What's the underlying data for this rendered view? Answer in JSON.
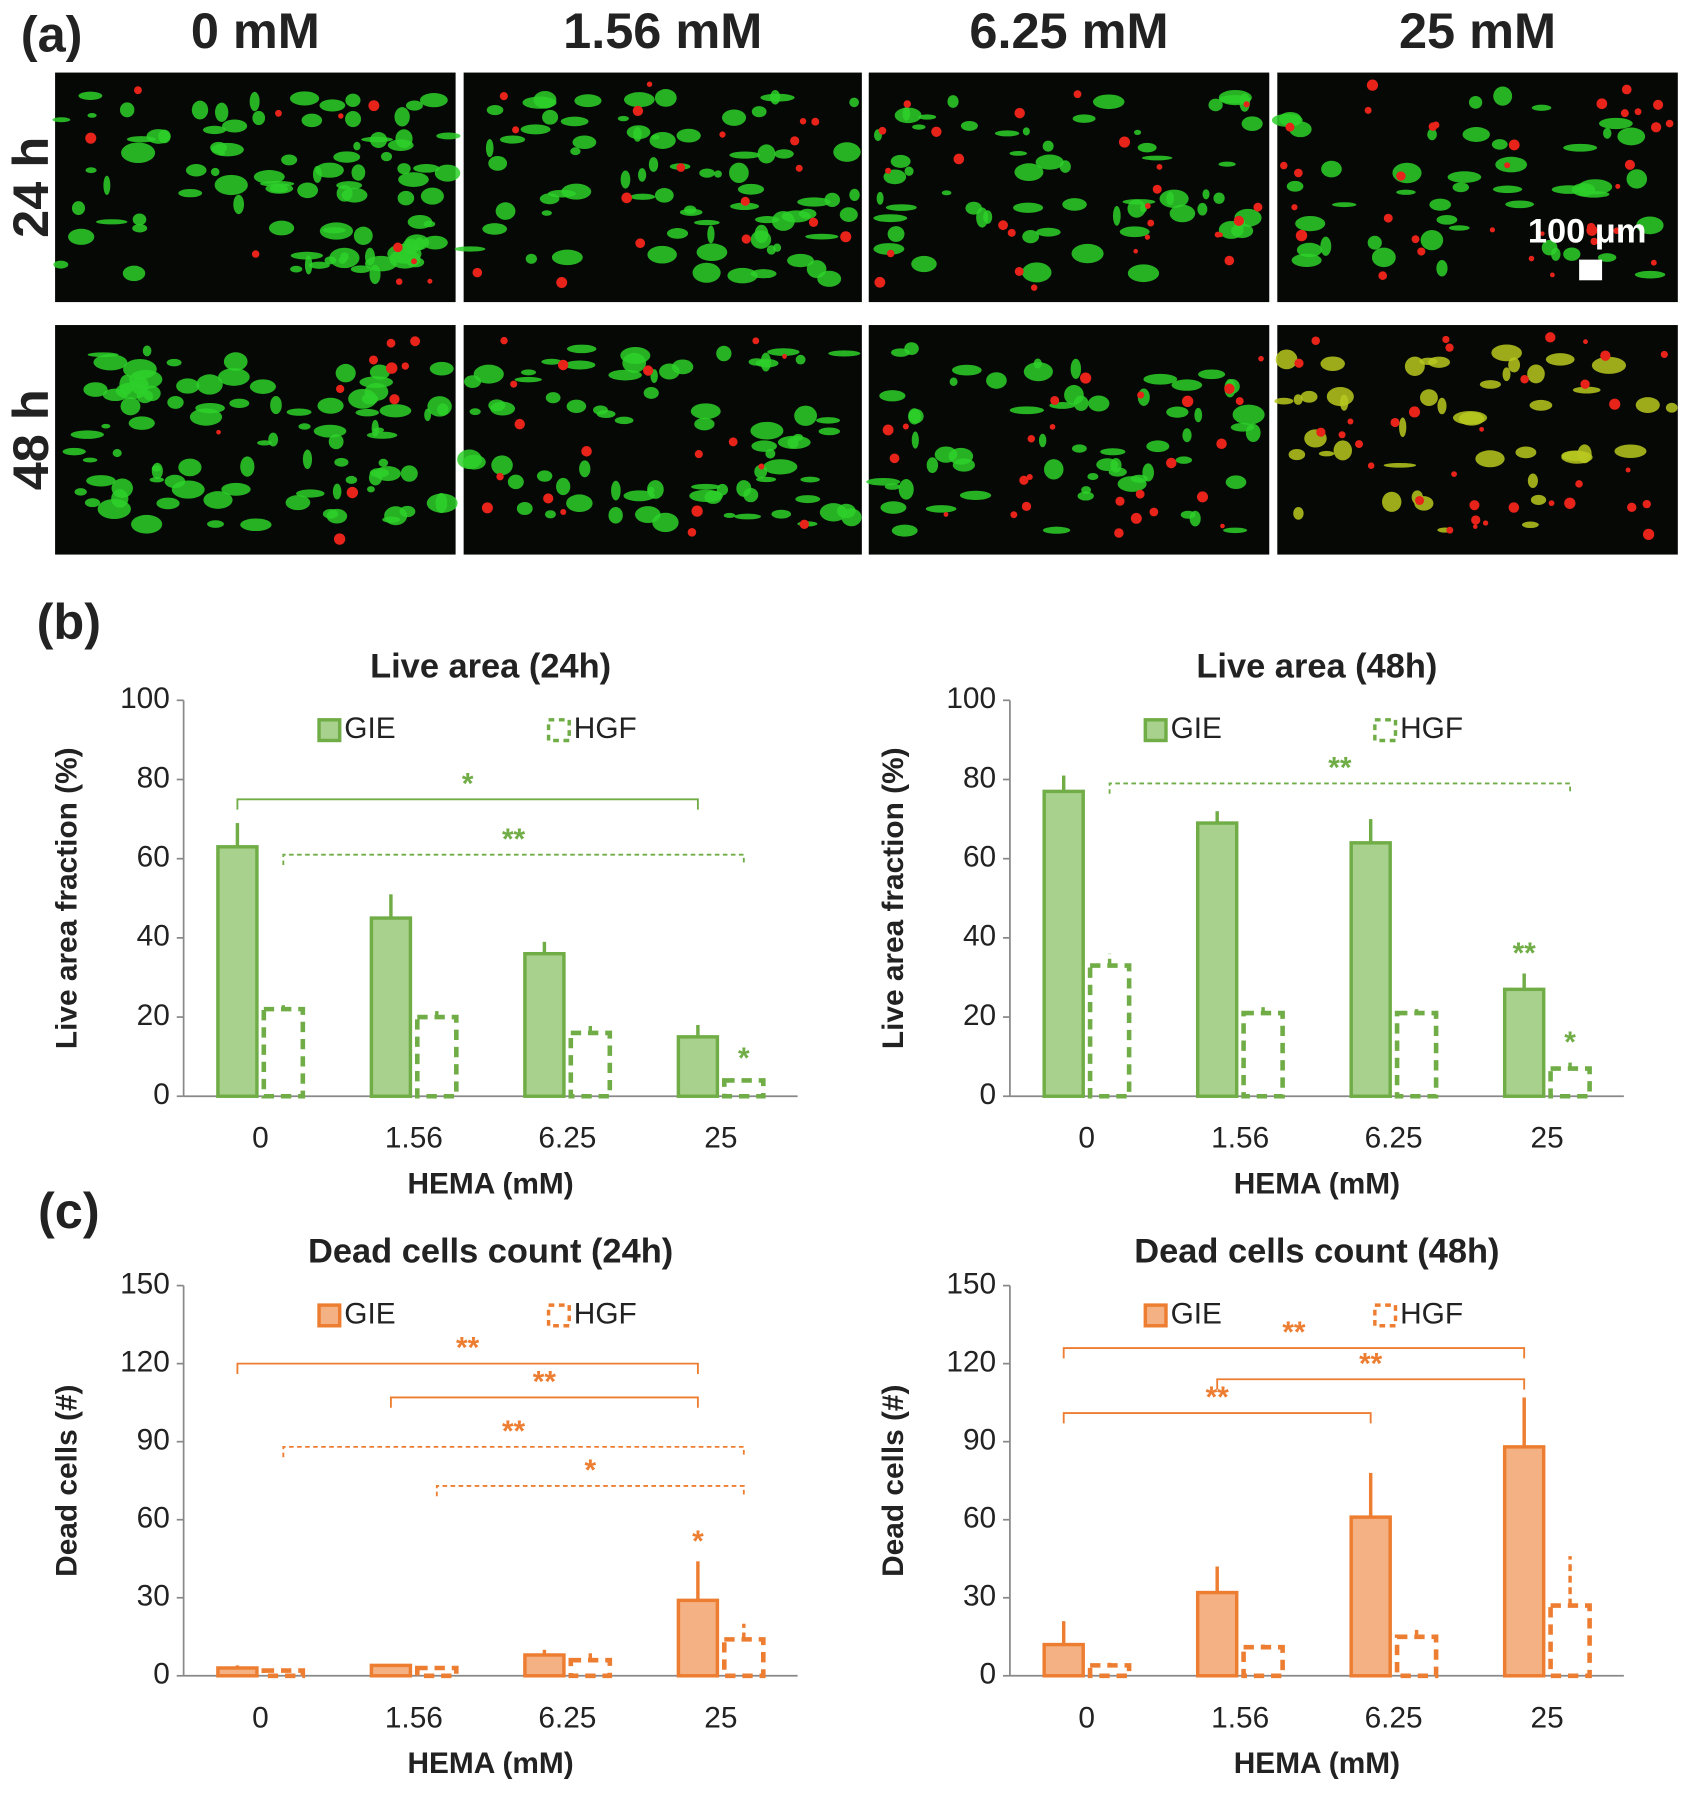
{
  "panel_labels": [
    "(a)",
    "(b)",
    "(c)"
  ],
  "micrographs": {
    "columns": [
      "0 mM",
      "1.56 mM",
      "6.25 mM",
      "25 mM"
    ],
    "rows": [
      "24 h",
      "48 h"
    ],
    "scale_bar": "100 μm"
  },
  "chart_data": [
    {
      "type": "bar",
      "title": "Live area (24h)",
      "xlabel": "HEMA (mM)",
      "ylabel": "Live area fraction (%)",
      "categories": [
        "0",
        "1.56",
        "6.25",
        "25"
      ],
      "series": [
        {
          "name": "GIE",
          "color": "#70ad47",
          "fill": "#a9d18e",
          "style": "solid",
          "values": [
            63,
            45,
            36,
            15
          ],
          "errors": [
            6,
            6,
            3,
            3
          ]
        },
        {
          "name": "HGF",
          "color": "#70ad47",
          "fill": "none",
          "style": "dashed",
          "values": [
            22,
            20,
            16,
            4
          ],
          "errors": [
            1,
            1.5,
            2,
            0.5
          ]
        }
      ],
      "ylim": [
        0,
        100
      ],
      "yticks": [
        0,
        20,
        40,
        60,
        80,
        100
      ],
      "legend": "top",
      "annotations": [
        {
          "text": "*",
          "y": 75,
          "from": [
            0,
            0
          ],
          "to": [
            3,
            0
          ],
          "style": "solid"
        },
        {
          "text": "**",
          "y": 61,
          "from": [
            0,
            1
          ],
          "to": [
            3,
            1
          ],
          "style": "dashed"
        },
        {
          "text": "*",
          "at": [
            3,
            1
          ]
        }
      ]
    },
    {
      "type": "bar",
      "title": "Live area (48h)",
      "xlabel": "HEMA (mM)",
      "ylabel": "Live area fraction (%)",
      "categories": [
        "0",
        "1.56",
        "6.25",
        "25"
      ],
      "series": [
        {
          "name": "GIE",
          "color": "#70ad47",
          "fill": "#a9d18e",
          "style": "solid",
          "values": [
            77,
            69,
            64,
            27
          ],
          "errors": [
            4,
            3,
            6,
            4
          ]
        },
        {
          "name": "HGF",
          "color": "#70ad47",
          "fill": "none",
          "style": "dashed",
          "values": [
            33,
            21,
            21,
            7
          ],
          "errors": [
            3,
            1.5,
            1,
            1.5
          ]
        }
      ],
      "ylim": [
        0,
        100
      ],
      "yticks": [
        0,
        20,
        40,
        60,
        80,
        100
      ],
      "legend": "top",
      "annotations": [
        {
          "text": "**",
          "y": 79,
          "from": [
            0,
            1
          ],
          "to": [
            3,
            1
          ],
          "style": "dashed"
        },
        {
          "text": "**",
          "at": [
            3,
            0
          ]
        },
        {
          "text": "*",
          "at": [
            3,
            1
          ]
        }
      ]
    },
    {
      "type": "bar",
      "title": "Dead cells count (24h)",
      "xlabel": "HEMA (mM)",
      "ylabel": "Dead cells (#)",
      "categories": [
        "0",
        "1.56",
        "6.25",
        "25"
      ],
      "series": [
        {
          "name": "GIE",
          "color": "#ed7d31",
          "fill": "#f4b183",
          "style": "solid",
          "values": [
            3,
            4,
            8,
            29
          ],
          "errors": [
            1,
            0.5,
            2,
            15
          ]
        },
        {
          "name": "HGF",
          "color": "#ed7d31",
          "fill": "none",
          "style": "dashed",
          "values": [
            2,
            3,
            6,
            14
          ],
          "errors": [
            0.5,
            0.5,
            3,
            6
          ]
        }
      ],
      "ylim": [
        0,
        150
      ],
      "yticks": [
        0,
        30,
        60,
        90,
        120,
        150
      ],
      "legend": "top",
      "annotations": [
        {
          "text": "**",
          "y": 120,
          "from": [
            0,
            0
          ],
          "to": [
            3,
            0
          ],
          "style": "solid"
        },
        {
          "text": "**",
          "y": 107,
          "from": [
            1,
            0
          ],
          "to": [
            3,
            0
          ],
          "style": "solid"
        },
        {
          "text": "**",
          "y": 88,
          "from": [
            0,
            1
          ],
          "to": [
            3,
            1
          ],
          "style": "dashed"
        },
        {
          "text": "*",
          "y": 73,
          "from": [
            1,
            1
          ],
          "to": [
            3,
            1
          ],
          "style": "dashed"
        },
        {
          "text": "*",
          "at": [
            3,
            0
          ]
        }
      ]
    },
    {
      "type": "bar",
      "title": "Dead cells count (48h)",
      "xlabel": "HEMA (mM)",
      "ylabel": "Dead cells (#)",
      "categories": [
        "0",
        "1.56",
        "6.25",
        "25"
      ],
      "series": [
        {
          "name": "GIE",
          "color": "#ed7d31",
          "fill": "#f4b183",
          "style": "solid",
          "values": [
            12,
            32,
            61,
            88
          ],
          "errors": [
            9,
            10,
            17,
            19
          ]
        },
        {
          "name": "HGF",
          "color": "#ed7d31",
          "fill": "none",
          "style": "dashed",
          "values": [
            4,
            11,
            15,
            27
          ],
          "errors": [
            1,
            1,
            3,
            19
          ]
        }
      ],
      "ylim": [
        0,
        150
      ],
      "yticks": [
        0,
        30,
        60,
        90,
        120,
        150
      ],
      "legend": "top",
      "annotations": [
        {
          "text": "**",
          "y": 126,
          "from": [
            0,
            0
          ],
          "to": [
            3,
            0
          ],
          "style": "solid"
        },
        {
          "text": "**",
          "y": 114,
          "from": [
            1,
            0
          ],
          "to": [
            3,
            0
          ],
          "style": "solid"
        },
        {
          "text": "**",
          "y": 101,
          "from": [
            0,
            0
          ],
          "to": [
            2,
            0
          ],
          "style": "solid"
        }
      ]
    }
  ]
}
